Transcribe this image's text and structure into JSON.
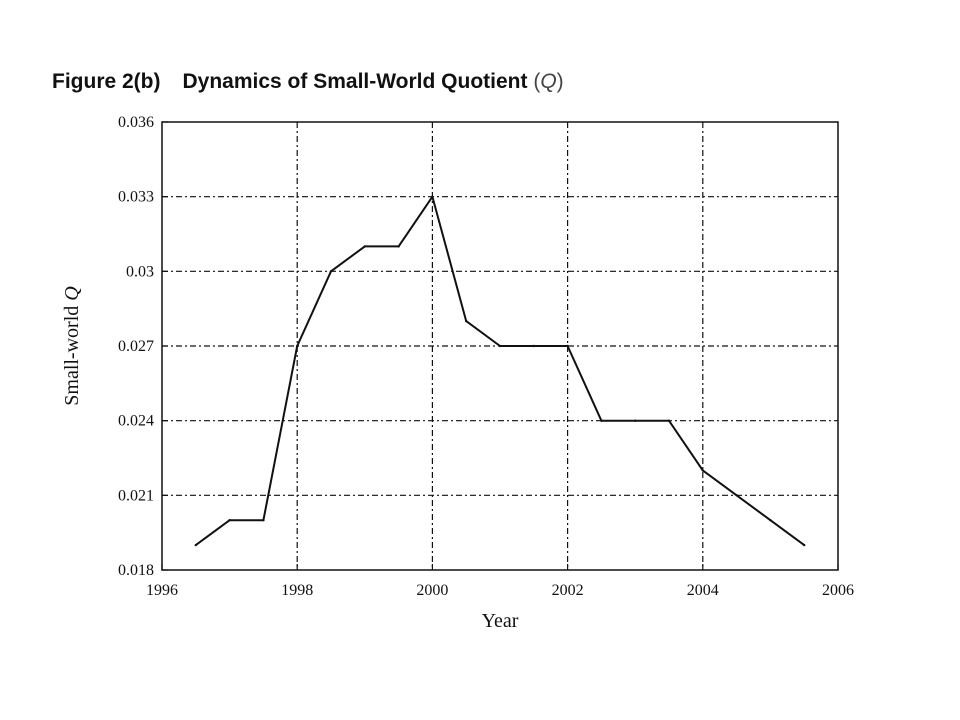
{
  "figure": {
    "number": "Figure 2(b)",
    "title_main": "Dynamics of Small-World Quotient",
    "title_paren_open": "(",
    "title_symbol": "Q",
    "title_paren_close": ")"
  },
  "chart_data": {
    "type": "line",
    "title": "Figure 2(b) Dynamics of Small-World Quotient (Q)",
    "xlabel": "Year",
    "ylabel_text": "Small-world",
    "ylabel_symbol": "Q",
    "xlim": [
      1996,
      2006
    ],
    "ylim": [
      0.018,
      0.036
    ],
    "xticks": [
      1996,
      1998,
      2000,
      2002,
      2004,
      2006
    ],
    "xtick_labels": [
      "1996",
      "1998",
      "2000",
      "2002",
      "2004",
      "2006"
    ],
    "yticks": [
      0.018,
      0.021,
      0.024,
      0.027,
      0.03,
      0.033,
      0.036
    ],
    "ytick_labels": [
      "0.018",
      "0.021",
      "0.024",
      "0.027",
      "0.03",
      "0.033",
      "0.036"
    ],
    "grid": true,
    "grid_style": "dash-dot",
    "series": [
      {
        "name": "Small-world Q",
        "color": "#111111",
        "x": [
          1996.5,
          1997,
          1997.5,
          1998,
          1998.5,
          1999,
          1999.5,
          2000,
          2000.5,
          2001,
          2001.5,
          2002,
          2002.5,
          2003,
          2003.5,
          2004,
          2004.5,
          2005,
          2005.5
        ],
        "y": [
          0.019,
          0.02,
          0.02,
          0.027,
          0.03,
          0.031,
          0.031,
          0.033,
          0.028,
          0.027,
          0.027,
          0.027,
          0.024,
          0.024,
          0.024,
          0.022,
          0.021,
          0.02,
          0.019
        ]
      }
    ]
  }
}
